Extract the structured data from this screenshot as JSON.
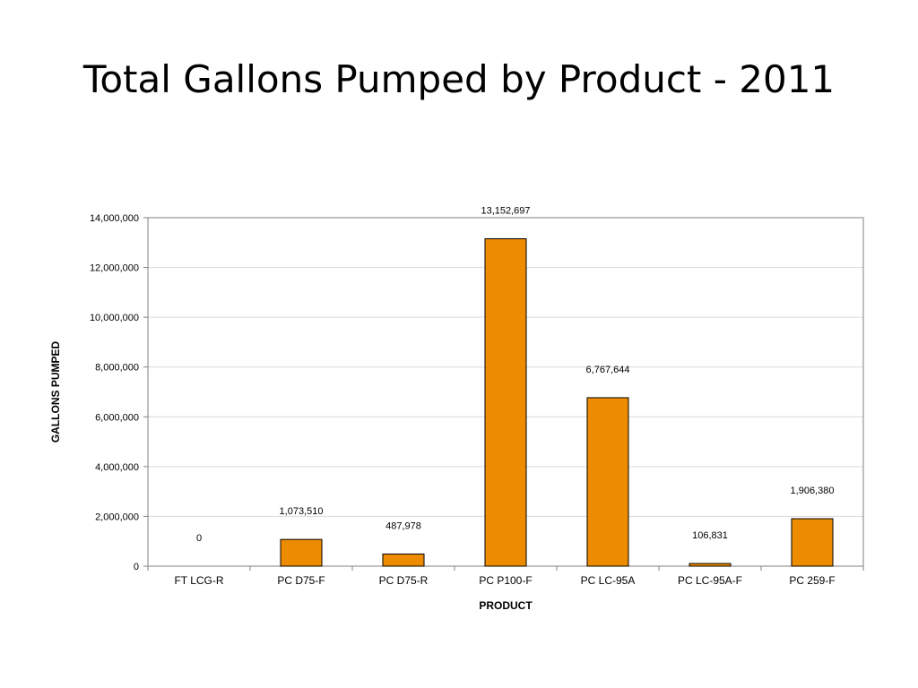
{
  "title": "Total Gallons Pumped by Product - 2011",
  "chart_data": {
    "type": "bar",
    "categories": [
      "FT LCG-R",
      "PC D75-F",
      "PC D75-R",
      "PC P100-F",
      "PC LC-95A",
      "PC LC-95A-F",
      "PC 259-F"
    ],
    "values": [
      0,
      1073510,
      487978,
      13152697,
      6767644,
      106831,
      1906380
    ],
    "data_labels": [
      "0",
      "1,073,510",
      "487,978",
      "13,152,697",
      "6,767,644",
      "106,831",
      "1,906,380"
    ],
    "xlabel": "PRODUCT",
    "ylabel": "GALLONS PUMPED",
    "ylim": [
      0,
      14000000
    ],
    "yticks": [
      0,
      2000000,
      4000000,
      6000000,
      8000000,
      10000000,
      12000000,
      14000000
    ],
    "ytick_labels": [
      "0",
      "2,000,000",
      "4,000,000",
      "6,000,000",
      "8,000,000",
      "10,000,000",
      "12,000,000",
      "14,000,000"
    ],
    "grid": true,
    "legend": false,
    "bar_color": "#ED8C00"
  }
}
